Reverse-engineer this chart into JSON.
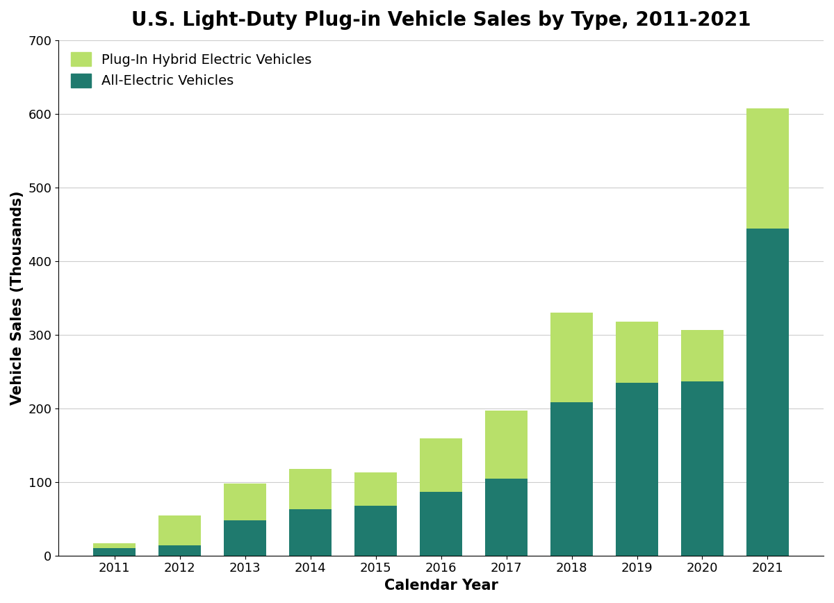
{
  "title": "U.S. Light-Duty Plug-in Vehicle Sales by Type, 2011-2021",
  "xlabel": "Calendar Year",
  "ylabel": "Vehicle Sales (Thousands)",
  "years": [
    2011,
    2012,
    2013,
    2014,
    2015,
    2016,
    2017,
    2018,
    2019,
    2020,
    2021
  ],
  "aev": [
    10,
    14,
    48,
    63,
    68,
    87,
    104,
    208,
    235,
    237,
    444
  ],
  "phev": [
    7,
    40,
    50,
    55,
    45,
    72,
    93,
    122,
    83,
    69,
    163
  ],
  "aev_color": "#1f7a6e",
  "phev_color": "#b8e06a",
  "ylim": [
    0,
    700
  ],
  "yticks": [
    0,
    100,
    200,
    300,
    400,
    500,
    600,
    700
  ],
  "title_fontsize": 20,
  "axis_label_fontsize": 15,
  "tick_fontsize": 13,
  "legend_fontsize": 14,
  "background_color": "#ffffff",
  "grid_color": "#cccccc",
  "bar_width": 0.65,
  "legend_label_aev": "All-Electric Vehicles",
  "legend_label_phev": "Plug-In Hybrid Electric Vehicles"
}
